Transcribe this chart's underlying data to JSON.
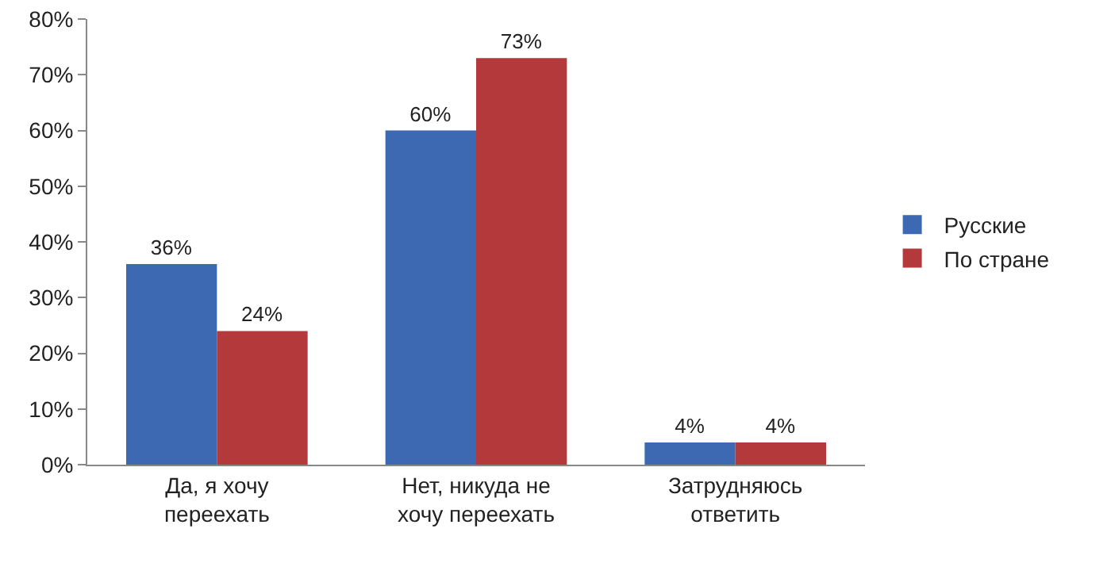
{
  "chart_data": {
    "type": "bar",
    "categories": [
      "Да, я хочу переехать",
      "Нет, никуда не хочу переехать",
      "Затрудняюсь ответить"
    ],
    "series": [
      {
        "name": "Русские",
        "color": "#3d68b2",
        "values": [
          36,
          60,
          4
        ],
        "value_labels": [
          "36%",
          "60%",
          "4%"
        ]
      },
      {
        "name": "По стране",
        "color": "#b3393b",
        "values": [
          24,
          73,
          4
        ],
        "value_labels": [
          "24%",
          "73%",
          "4%"
        ]
      }
    ],
    "ylim": [
      0,
      80
    ],
    "yticks": [
      {
        "value": 0,
        "label": "0%"
      },
      {
        "value": 10,
        "label": "10%"
      },
      {
        "value": 20,
        "label": "20%"
      },
      {
        "value": 30,
        "label": "30%"
      },
      {
        "value": 40,
        "label": "40%"
      },
      {
        "value": 50,
        "label": "50%"
      },
      {
        "value": 60,
        "label": "60%"
      },
      {
        "value": 70,
        "label": "70%"
      },
      {
        "value": 80,
        "label": "80%"
      }
    ],
    "grid": false,
    "legend": "right"
  }
}
